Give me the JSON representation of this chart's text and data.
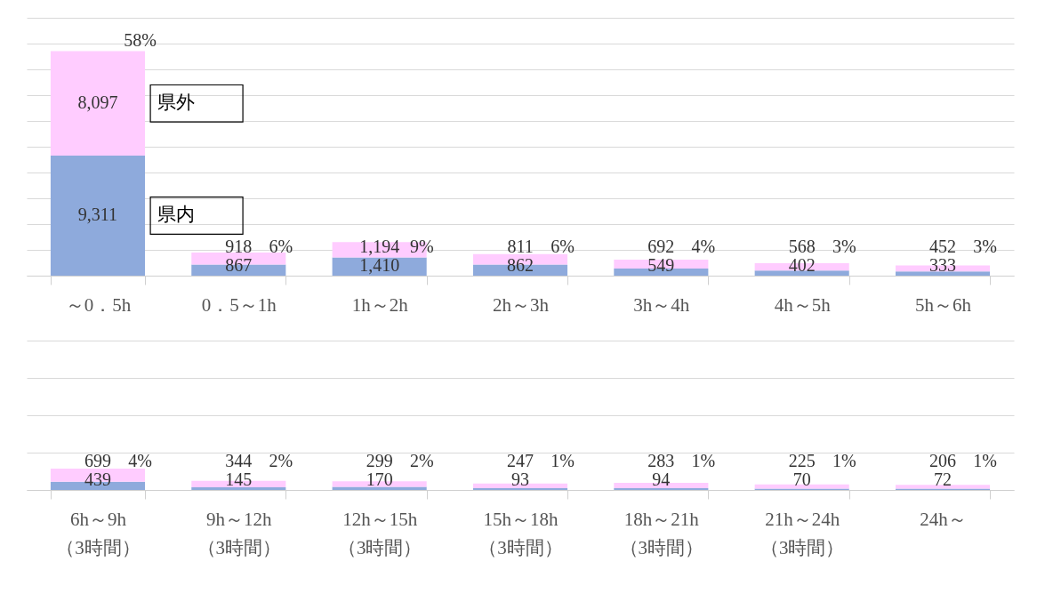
{
  "chart_data": [
    {
      "type": "bar",
      "stacked": true,
      "categories": [
        "～0．5h",
        "0．5～1h",
        "1h～2h",
        "2h～3h",
        "3h～4h",
        "4h～5h",
        "5h～6h"
      ],
      "series": [
        {
          "name": "県内",
          "color": "#8eaadc",
          "values": [
            9311,
            867,
            1410,
            862,
            549,
            402,
            333
          ],
          "value_labels": [
            "9,311",
            "867",
            "1,410",
            "862",
            "549",
            "402",
            "333"
          ]
        },
        {
          "name": "県外",
          "color": "#ffccff",
          "values": [
            8097,
            918,
            1194,
            811,
            692,
            568,
            452
          ],
          "value_labels": [
            "8,097",
            "918",
            "1,194",
            "811",
            "692",
            "568",
            "452"
          ]
        }
      ],
      "annotations": [
        "58%",
        "6%",
        "9%",
        "6%",
        "4%",
        "3%",
        "3%"
      ],
      "ylim": [
        0,
        20000
      ],
      "grid": "y",
      "tick_labels": "x",
      "legend": false
    },
    {
      "type": "bar",
      "stacked": true,
      "categories": [
        "6h～9h\n（3時間）",
        "9h～12h\n（3時間）",
        "12h～15h\n（3時間）",
        "15h～18h\n（3時間）",
        "18h～21h\n（3時間）",
        "21h～24h\n（3時間）",
        "24h～"
      ],
      "series": [
        {
          "color": "#8eaadc",
          "values": [
            439,
            145,
            170,
            93,
            94,
            70,
            72
          ],
          "value_labels": [
            "439",
            "145",
            "170",
            "93",
            "94",
            "70",
            "72"
          ]
        },
        {
          "color": "#ffccff",
          "values": [
            699,
            344,
            299,
            247,
            283,
            225,
            206
          ],
          "value_labels": [
            "699",
            "344",
            "299",
            "247",
            "283",
            "225",
            "206"
          ]
        }
      ],
      "annotations": [
        "4%",
        "2%",
        "2%",
        "1%",
        "1%",
        "1%",
        "1%"
      ],
      "ylim": [
        0,
        8000
      ],
      "grid": "y",
      "tick_labels": "x",
      "legend": false
    }
  ]
}
